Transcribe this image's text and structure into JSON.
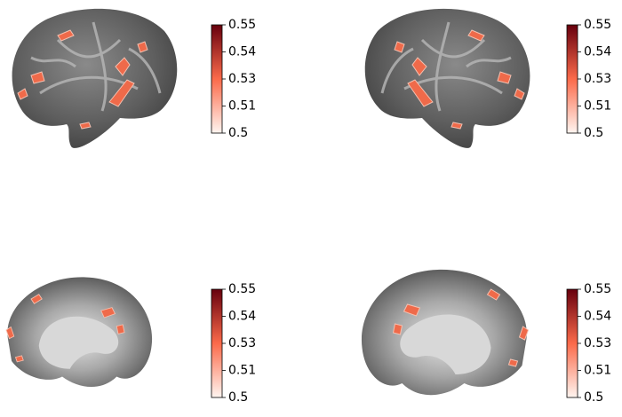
{
  "chart_data": [
    {
      "type": "colorbar",
      "clim": [
        0.5,
        0.55
      ],
      "cticks": [
        0.5,
        {
          "value": 0.5125,
          "label": "0.51"
        },
        {
          "value": 0.525,
          "label": "0.53"
        },
        {
          "value": 0.5375,
          "label": "0.54"
        },
        0.55
      ],
      "colors": [
        "#fff5f0",
        "#fb6a4a",
        "#67000d"
      ]
    },
    {
      "type": "colorbar",
      "clim": [
        0.5,
        0.55
      ],
      "cticks": [
        0.5,
        {
          "value": 0.5125,
          "label": "0.51"
        },
        {
          "value": 0.525,
          "label": "0.53"
        },
        {
          "value": 0.5375,
          "label": "0.54"
        },
        0.55
      ],
      "colors": [
        "#fff5f0",
        "#fb6a4a",
        "#67000d"
      ]
    },
    {
      "type": "colorbar",
      "clim": [
        0.5,
        0.55
      ],
      "cticks": [
        0.5,
        {
          "value": 0.5125,
          "label": "0.51"
        },
        {
          "value": 0.525,
          "label": "0.53"
        },
        {
          "value": 0.5375,
          "label": "0.54"
        },
        0.55
      ],
      "colors": [
        "#fff5f0",
        "#fb6a4a",
        "#67000d"
      ]
    },
    {
      "type": "colorbar",
      "clim": [
        0.5,
        0.55
      ],
      "cticks": [
        0.5,
        {
          "value": 0.5125,
          "label": "0.51"
        },
        {
          "value": 0.525,
          "label": "0.53"
        },
        {
          "value": 0.5375,
          "label": "0.54"
        },
        0.55
      ],
      "colors": [
        "#fff5f0",
        "#fb6a4a",
        "#67000d"
      ]
    }
  ]
}
